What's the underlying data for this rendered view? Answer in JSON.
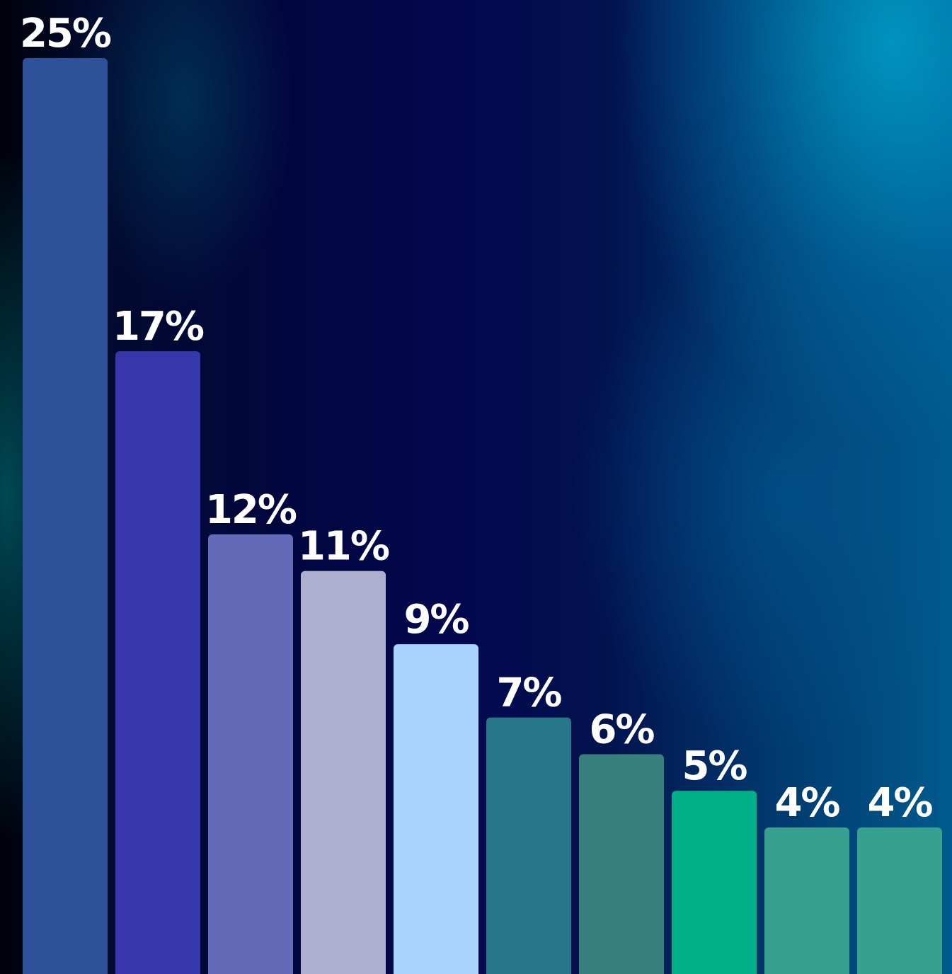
{
  "chart_data": {
    "type": "bar",
    "categories": [],
    "values": [
      25,
      17,
      12,
      11,
      9,
      7,
      6,
      5,
      4,
      4
    ],
    "labels": [
      "25%",
      "17%",
      "12%",
      "11%",
      "9%",
      "7%",
      "6%",
      "5%",
      "4%",
      "4%"
    ],
    "colors": [
      "#2d5299",
      "#3737ab",
      "#636ab8",
      "#acb0ce",
      "#abd3ff",
      "#277689",
      "#387f80",
      "#00b089",
      "#38a08e",
      "#38a08e"
    ],
    "ylim": [
      0,
      25
    ],
    "grid": false,
    "legend": "none"
  }
}
